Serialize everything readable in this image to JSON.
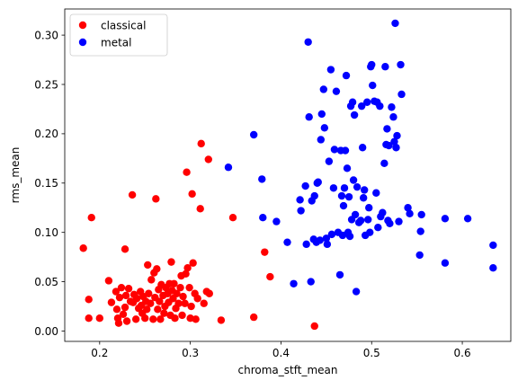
{
  "chart_data": {
    "type": "scatter",
    "title": "",
    "xlabel": "chroma_stft_mean",
    "ylabel": "rms_mean",
    "xlim": [
      0.1615,
      0.6535
    ],
    "ylim": [
      -0.0105,
      0.3265
    ],
    "xticks": [
      0.2,
      0.3,
      0.4,
      0.5,
      0.6
    ],
    "xtick_labels": [
      "0.2",
      "0.3",
      "0.4",
      "0.5",
      "0.6"
    ],
    "yticks": [
      0.0,
      0.05,
      0.1,
      0.15,
      0.2,
      0.25,
      0.3
    ],
    "ytick_labels": [
      "0.00",
      "0.05",
      "0.10",
      "0.15",
      "0.20",
      "0.25",
      "0.30"
    ],
    "grid": false,
    "legend_position": "top-left",
    "series": [
      {
        "name": "classical",
        "color": "#ff0000",
        "points": [
          [
            0.182,
            0.084
          ],
          [
            0.191,
            0.115
          ],
          [
            0.188,
            0.032
          ],
          [
            0.188,
            0.013
          ],
          [
            0.2,
            0.013
          ],
          [
            0.21,
            0.051
          ],
          [
            0.213,
            0.029
          ],
          [
            0.218,
            0.04
          ],
          [
            0.219,
            0.022
          ],
          [
            0.22,
            0.013
          ],
          [
            0.221,
            0.008
          ],
          [
            0.222,
            0.034
          ],
          [
            0.224,
            0.044
          ],
          [
            0.226,
            0.017
          ],
          [
            0.228,
            0.083
          ],
          [
            0.228,
            0.024
          ],
          [
            0.229,
            0.036
          ],
          [
            0.23,
            0.01
          ],
          [
            0.232,
            0.043
          ],
          [
            0.234,
            0.03
          ],
          [
            0.236,
            0.138
          ],
          [
            0.237,
            0.029
          ],
          [
            0.238,
            0.037
          ],
          [
            0.24,
            0.012
          ],
          [
            0.241,
            0.033
          ],
          [
            0.243,
            0.023
          ],
          [
            0.245,
            0.04
          ],
          [
            0.246,
            0.026
          ],
          [
            0.247,
            0.018
          ],
          [
            0.248,
            0.035
          ],
          [
            0.25,
            0.013
          ],
          [
            0.251,
            0.03
          ],
          [
            0.252,
            0.022
          ],
          [
            0.253,
            0.067
          ],
          [
            0.254,
            0.038
          ],
          [
            0.256,
            0.028
          ],
          [
            0.257,
            0.052
          ],
          [
            0.259,
            0.012
          ],
          [
            0.26,
            0.059
          ],
          [
            0.261,
            0.034
          ],
          [
            0.262,
            0.134
          ],
          [
            0.263,
            0.063
          ],
          [
            0.264,
            0.022
          ],
          [
            0.265,
            0.042
          ],
          [
            0.266,
            0.03
          ],
          [
            0.267,
            0.012
          ],
          [
            0.268,
            0.047
          ],
          [
            0.27,
            0.036
          ],
          [
            0.271,
            0.018
          ],
          [
            0.272,
            0.025
          ],
          [
            0.273,
            0.044
          ],
          [
            0.275,
            0.038
          ],
          [
            0.276,
            0.029
          ],
          [
            0.277,
            0.048
          ],
          [
            0.278,
            0.016
          ],
          [
            0.279,
            0.07
          ],
          [
            0.28,
            0.041
          ],
          [
            0.281,
            0.033
          ],
          [
            0.282,
            0.048
          ],
          [
            0.283,
            0.013
          ],
          [
            0.284,
            0.023
          ],
          [
            0.285,
            0.038
          ],
          [
            0.287,
            0.028
          ],
          [
            0.289,
            0.044
          ],
          [
            0.29,
            0.056
          ],
          [
            0.291,
            0.016
          ],
          [
            0.292,
            0.035
          ],
          [
            0.294,
            0.028
          ],
          [
            0.295,
            0.058
          ],
          [
            0.296,
            0.161
          ],
          [
            0.297,
            0.064
          ],
          [
            0.299,
            0.044
          ],
          [
            0.3,
            0.013
          ],
          [
            0.301,
            0.025
          ],
          [
            0.302,
            0.139
          ],
          [
            0.303,
            0.069
          ],
          [
            0.305,
            0.038
          ],
          [
            0.306,
            0.012
          ],
          [
            0.308,
            0.033
          ],
          [
            0.311,
            0.124
          ],
          [
            0.312,
            0.19
          ],
          [
            0.315,
            0.028
          ],
          [
            0.318,
            0.04
          ],
          [
            0.32,
            0.174
          ],
          [
            0.321,
            0.038
          ],
          [
            0.334,
            0.011
          ],
          [
            0.347,
            0.115
          ],
          [
            0.37,
            0.014
          ],
          [
            0.382,
            0.08
          ],
          [
            0.388,
            0.055
          ],
          [
            0.437,
            0.005
          ]
        ]
      },
      {
        "name": "metal",
        "color": "#0000ff",
        "points": [
          [
            0.342,
            0.166
          ],
          [
            0.37,
            0.199
          ],
          [
            0.379,
            0.154
          ],
          [
            0.38,
            0.115
          ],
          [
            0.395,
            0.111
          ],
          [
            0.407,
            0.09
          ],
          [
            0.414,
            0.048
          ],
          [
            0.421,
            0.133
          ],
          [
            0.422,
            0.122
          ],
          [
            0.427,
            0.147
          ],
          [
            0.428,
            0.088
          ],
          [
            0.43,
            0.293
          ],
          [
            0.431,
            0.217
          ],
          [
            0.433,
            0.05
          ],
          [
            0.434,
            0.132
          ],
          [
            0.436,
            0.093
          ],
          [
            0.437,
            0.137
          ],
          [
            0.439,
            0.09
          ],
          [
            0.44,
            0.15
          ],
          [
            0.441,
            0.151
          ],
          [
            0.443,
            0.092
          ],
          [
            0.444,
            0.194
          ],
          [
            0.445,
            0.22
          ],
          [
            0.447,
            0.245
          ],
          [
            0.448,
            0.206
          ],
          [
            0.45,
            0.094
          ],
          [
            0.451,
            0.088
          ],
          [
            0.453,
            0.172
          ],
          [
            0.455,
            0.265
          ],
          [
            0.456,
            0.098
          ],
          [
            0.458,
            0.145
          ],
          [
            0.459,
            0.184
          ],
          [
            0.461,
            0.243
          ],
          [
            0.463,
            0.1
          ],
          [
            0.465,
            0.057
          ],
          [
            0.466,
            0.183
          ],
          [
            0.467,
            0.137
          ],
          [
            0.468,
            0.097
          ],
          [
            0.469,
            0.127
          ],
          [
            0.47,
            0.145
          ],
          [
            0.471,
            0.183
          ],
          [
            0.472,
            0.259
          ],
          [
            0.473,
            0.165
          ],
          [
            0.474,
            0.1
          ],
          [
            0.475,
            0.136
          ],
          [
            0.476,
            0.096
          ],
          [
            0.477,
            0.228
          ],
          [
            0.478,
            0.113
          ],
          [
            0.479,
            0.232
          ],
          [
            0.48,
            0.153
          ],
          [
            0.481,
            0.219
          ],
          [
            0.482,
            0.118
          ],
          [
            0.483,
            0.04
          ],
          [
            0.484,
            0.146
          ],
          [
            0.486,
            0.11
          ],
          [
            0.488,
            0.112
          ],
          [
            0.489,
            0.228
          ],
          [
            0.49,
            0.186
          ],
          [
            0.491,
            0.135
          ],
          [
            0.492,
            0.143
          ],
          [
            0.493,
            0.097
          ],
          [
            0.495,
            0.232
          ],
          [
            0.496,
            0.113
          ],
          [
            0.497,
            0.125
          ],
          [
            0.498,
            0.1
          ],
          [
            0.499,
            0.268
          ],
          [
            0.5,
            0.27
          ],
          [
            0.501,
            0.249
          ],
          [
            0.503,
            0.233
          ],
          [
            0.505,
            0.14
          ],
          [
            0.506,
            0.232
          ],
          [
            0.507,
            0.105
          ],
          [
            0.509,
            0.228
          ],
          [
            0.51,
            0.116
          ],
          [
            0.512,
            0.12
          ],
          [
            0.514,
            0.17
          ],
          [
            0.515,
            0.268
          ],
          [
            0.516,
            0.189
          ],
          [
            0.517,
            0.205
          ],
          [
            0.518,
            0.112
          ],
          [
            0.519,
            0.188
          ],
          [
            0.52,
            0.109
          ],
          [
            0.522,
            0.227
          ],
          [
            0.524,
            0.217
          ],
          [
            0.525,
            0.192
          ],
          [
            0.526,
            0.312
          ],
          [
            0.527,
            0.186
          ],
          [
            0.528,
            0.198
          ],
          [
            0.53,
            0.111
          ],
          [
            0.532,
            0.27
          ],
          [
            0.533,
            0.24
          ],
          [
            0.54,
            0.125
          ],
          [
            0.542,
            0.119
          ],
          [
            0.553,
            0.077
          ],
          [
            0.554,
            0.101
          ],
          [
            0.555,
            0.118
          ],
          [
            0.581,
            0.114
          ],
          [
            0.581,
            0.069
          ],
          [
            0.606,
            0.114
          ],
          [
            0.634,
            0.087
          ],
          [
            0.634,
            0.064
          ]
        ]
      }
    ]
  }
}
